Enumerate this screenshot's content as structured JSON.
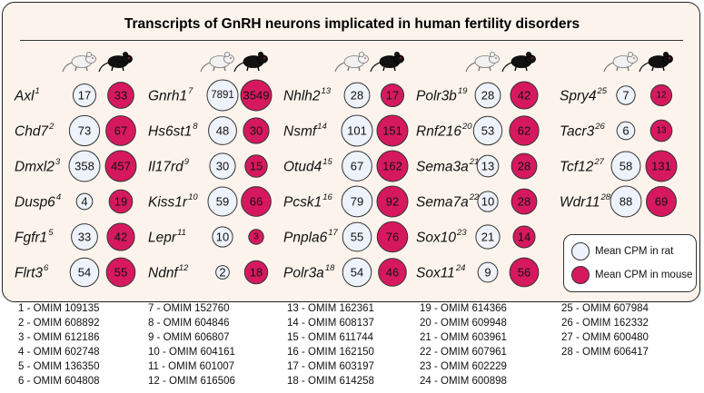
{
  "title": "Transcripts of GnRH neurons implicated in human fertility disorders",
  "legend": {
    "rat_label": "Mean CPM in rat",
    "mouse_label": "Mean CPM in mouse",
    "rat_color": "#eef2fb",
    "mouse_color": "#d6195f"
  },
  "icons": [
    "rat-icon",
    "mouse-icon"
  ],
  "columns": [
    [
      {
        "gene": "Axl",
        "ref": "1",
        "rat": 17,
        "mouse": 33
      },
      {
        "gene": "Chd7",
        "ref": "2",
        "rat": 73,
        "mouse": 67
      },
      {
        "gene": "Dmxl2",
        "ref": "3",
        "rat": 358,
        "mouse": 457
      },
      {
        "gene": "Dusp6",
        "ref": "4",
        "rat": 4,
        "mouse": 19
      },
      {
        "gene": "Fgfr1",
        "ref": "5",
        "rat": 33,
        "mouse": 42
      },
      {
        "gene": "Flrt3",
        "ref": "6",
        "rat": 54,
        "mouse": 55
      }
    ],
    [
      {
        "gene": "Gnrh1",
        "ref": "7",
        "rat": 7891,
        "mouse": 3549
      },
      {
        "gene": "Hs6st1",
        "ref": "8",
        "rat": 48,
        "mouse": 30
      },
      {
        "gene": "Il17rd",
        "ref": "9",
        "rat": 30,
        "mouse": 15
      },
      {
        "gene": "Kiss1r",
        "ref": "10",
        "rat": 59,
        "mouse": 66
      },
      {
        "gene": "Lepr",
        "ref": "11",
        "rat": 10,
        "mouse": 3
      },
      {
        "gene": "Ndnf",
        "ref": "12",
        "rat": 2,
        "mouse": 18
      }
    ],
    [
      {
        "gene": "Nhlh2",
        "ref": "13",
        "rat": 28,
        "mouse": 17
      },
      {
        "gene": "Nsmf",
        "ref": "14",
        "rat": 101,
        "mouse": 151
      },
      {
        "gene": "Otud4",
        "ref": "15",
        "rat": 67,
        "mouse": 162
      },
      {
        "gene": "Pcsk1",
        "ref": "16",
        "rat": 79,
        "mouse": 92
      },
      {
        "gene": "Pnpla6",
        "ref": "17",
        "rat": 55,
        "mouse": 76
      },
      {
        "gene": "Polr3a",
        "ref": "18",
        "rat": 54,
        "mouse": 46
      }
    ],
    [
      {
        "gene": "Polr3b",
        "ref": "19",
        "rat": 28,
        "mouse": 42
      },
      {
        "gene": "Rnf216",
        "ref": "20",
        "rat": 53,
        "mouse": 62
      },
      {
        "gene": "Sema3a",
        "ref": "21",
        "rat": 13,
        "mouse": 28
      },
      {
        "gene": "Sema7a",
        "ref": "22",
        "rat": 10,
        "mouse": 28
      },
      {
        "gene": "Sox10",
        "ref": "23",
        "rat": 21,
        "mouse": 14
      },
      {
        "gene": "Sox11",
        "ref": "24",
        "rat": 9,
        "mouse": 56
      }
    ],
    [
      {
        "gene": "Spry4",
        "ref": "25",
        "rat": 7,
        "mouse": 12
      },
      {
        "gene": "Tacr3",
        "ref": "26",
        "rat": 6,
        "mouse": 13
      },
      {
        "gene": "Tcf12",
        "ref": "27",
        "rat": 58,
        "mouse": 131
      },
      {
        "gene": "Wdr11",
        "ref": "28",
        "rat": 88,
        "mouse": 69
      }
    ]
  ],
  "omim": [
    [
      "1 - OMIM 109135",
      "2 - OMIM 608892",
      "3 - OMIM 612186",
      "4 - OMIM 602748",
      "5 - OMIM 136350",
      "6 - OMIM 604808"
    ],
    [
      "7 - OMIM 152760",
      "8 - OMIM 604846",
      "9 - OMIM 606807",
      "10 - OMIM 604161",
      "11 - OMIM 601007",
      "12 - OMIM 616506"
    ],
    [
      "13 - OMIM 162361",
      "14 - OMIM 608137",
      "15 - OMIM 611744",
      "16 - OMIM 162150",
      "17 - OMIM 603197",
      "18 - OMIM 614258"
    ],
    [
      "19 - OMIM 614366",
      "20 - OMIM 609948",
      "21 - OMIM 603961",
      "22 - OMIM 607961",
      "23 - OMIM 602229",
      "24 - OMIM 600898"
    ],
    [
      "25 - OMIM 607984",
      "26 - OMIM 162332",
      "27 - OMIM 600480",
      "28 - OMIM 606417"
    ]
  ]
}
